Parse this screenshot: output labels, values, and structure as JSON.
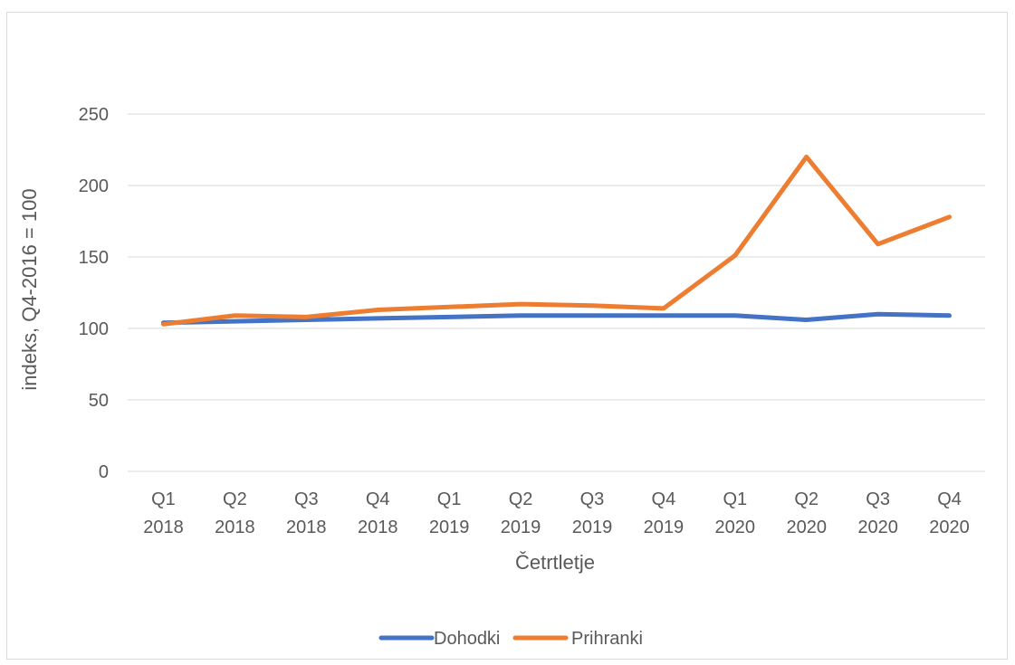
{
  "chart_data": {
    "type": "line",
    "categories": [
      [
        "Q1",
        "2018"
      ],
      [
        "Q2",
        "2018"
      ],
      [
        "Q3",
        "2018"
      ],
      [
        "Q4",
        "2018"
      ],
      [
        "Q1",
        "2019"
      ],
      [
        "Q2",
        "2019"
      ],
      [
        "Q3",
        "2019"
      ],
      [
        "Q4",
        "2019"
      ],
      [
        "Q1",
        "2020"
      ],
      [
        "Q2",
        "2020"
      ],
      [
        "Q3",
        "2020"
      ],
      [
        "Q4",
        "2020"
      ]
    ],
    "series": [
      {
        "name": "Dohodki",
        "color": "#4472C4",
        "values": [
          104,
          105,
          106,
          107,
          108,
          109,
          109,
          109,
          109,
          106,
          110,
          109
        ]
      },
      {
        "name": "Prihranki",
        "color": "#ED7D31",
        "values": [
          103,
          109,
          108,
          113,
          115,
          117,
          116,
          114,
          151,
          220,
          159,
          178
        ]
      }
    ],
    "xlabel": "Četrtletje",
    "ylabel": "indeks, Q4-2016 = 100",
    "ylim": [
      0,
      250
    ],
    "yticks": [
      0,
      50,
      100,
      150,
      200,
      250
    ],
    "grid": true,
    "legend_position": "bottom"
  }
}
